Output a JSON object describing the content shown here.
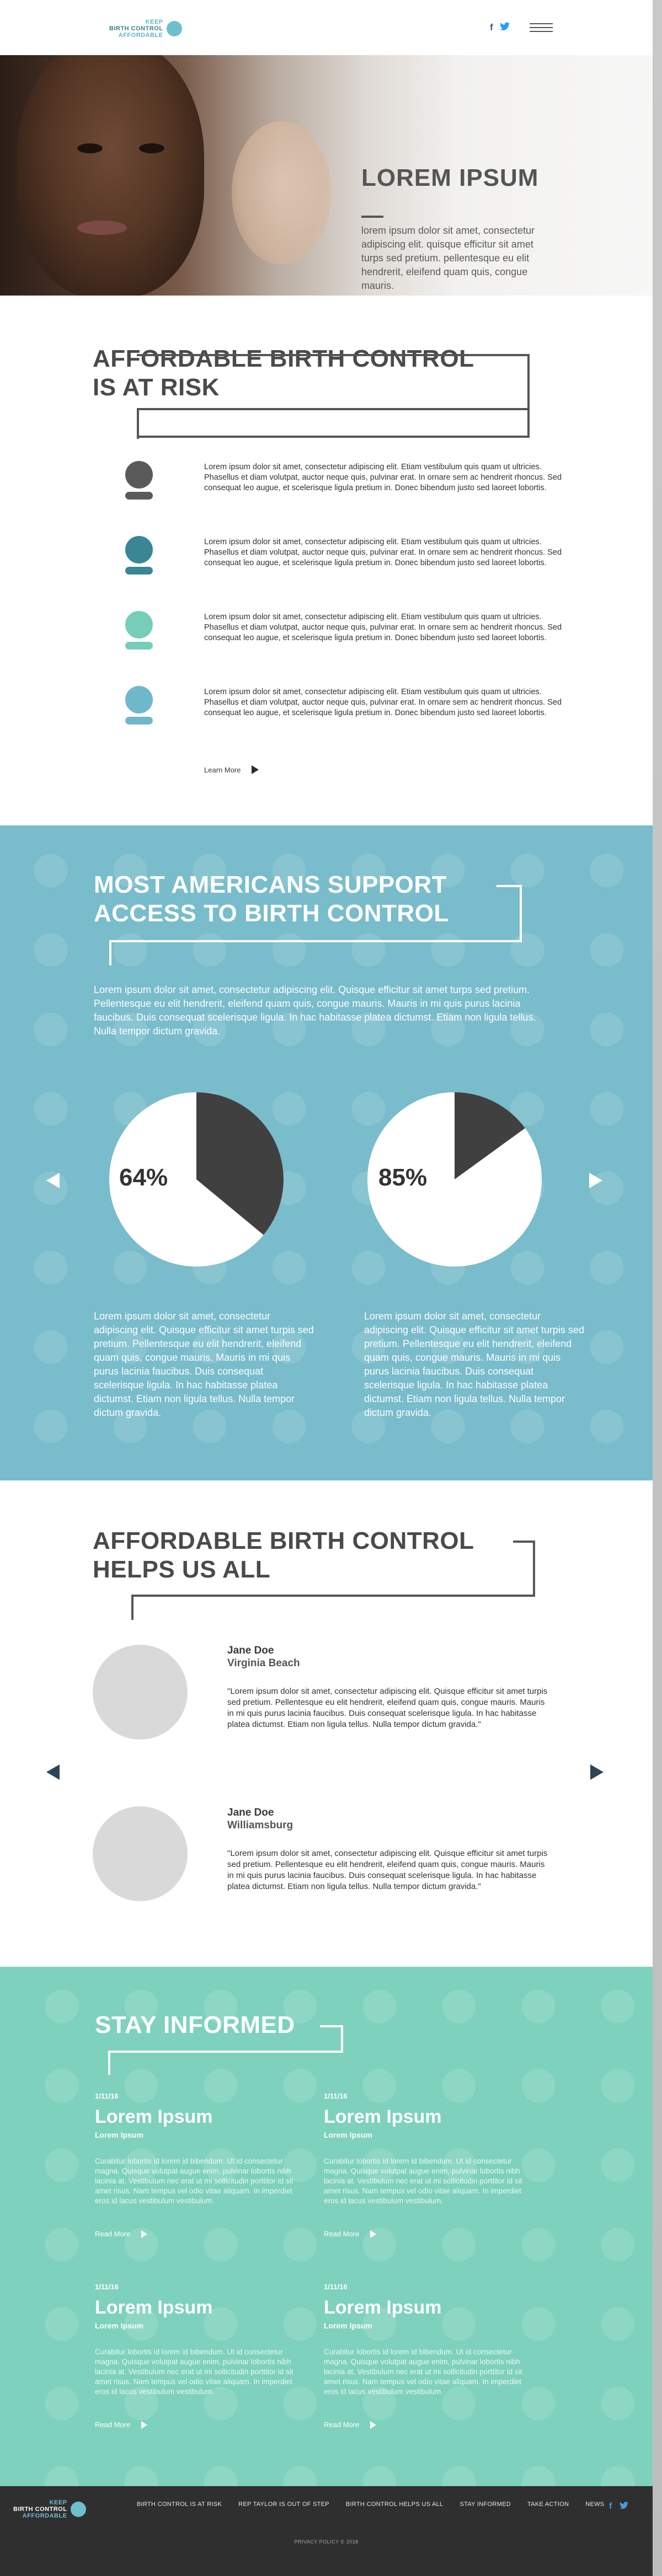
{
  "brand": {
    "line1": "KEEP",
    "line2": "BIRTH CONTROL",
    "line3": "AFFORDABLE"
  },
  "header": {
    "facebook_icon": "f",
    "twitter_icon": "t",
    "menu_icon": "hamburger-menu"
  },
  "hero": {
    "title": "LOREM IPSUM",
    "text": "lorem ipsum dolor sit amet, consectetur adipiscing elit. quisque efficitur sit amet turps sed pretium. pellentesque eu elit hendrerit, eleifend quam quis, congue mauris."
  },
  "risk": {
    "title_line1": "AFFORDABLE BIRTH CONTROL",
    "title_line2": "IS AT RISK",
    "items": [
      {
        "color": "#5a5a5a",
        "text": "Lorem ipsum dolor sit amet, consectetur adipiscing elit. Etiam vestibulum quis quam ut ultricies. Phasellus et diam volutpat, auctor neque quis, pulvinar erat. In ornare sem ac hendrerit rhoncus. Sed consequat leo augue, et scelerisque ligula pretium in. Donec bibendum justo sed laoreet lobortis."
      },
      {
        "color": "#3a8694",
        "text": "Lorem ipsum dolor sit amet, consectetur adipiscing elit. Etiam vestibulum quis quam ut ultricies. Phasellus et diam volutpat, auctor neque quis, pulvinar erat. In ornare sem ac hendrerit rhoncus. Sed consequat leo augue, et scelerisque ligula pretium in. Donec bibendum justo sed laoreet lobortis."
      },
      {
        "color": "#76cdb9",
        "text": "Lorem ipsum dolor sit amet, consectetur adipiscing elit. Etiam vestibulum quis quam ut ultricies. Phasellus et diam volutpat, auctor neque quis, pulvinar erat. In ornare sem ac hendrerit rhoncus. Sed consequat leo augue, et scelerisque ligula pretium in. Donec bibendum justo sed laoreet lobortis."
      },
      {
        "color": "#6fb8cb",
        "text": "Lorem ipsum dolor sit amet, consectetur adipiscing elit. Etiam vestibulum quis quam ut ultricies. Phasellus et diam volutpat, auctor neque quis, pulvinar erat. In ornare sem ac hendrerit rhoncus. Sed consequat leo augue, et scelerisque ligula pretium in. Donec bibendum justo sed laoreet lobortis."
      }
    ],
    "learn_more": "Learn More"
  },
  "support": {
    "title_line1": "MOST AMERICANS SUPPORT",
    "title_line2": "ACCESS TO BIRTH CONTROL",
    "intro": "Lorem ipsum dolor sit amet, consectetur adipiscing elit. Quisque efficitur sit amet turps sed pretium. Pellentesque eu elit hendrerit, eleifend quam quis, congue mauris. Mauris in mi quis purus lacinia faucibus. Duis consequat scelerisque ligula. In hac habitasse platea dictumst. Etiam non ligula tellus. Nulla tempor dictum gravida.",
    "stats": [
      {
        "label": "64%",
        "value": 64,
        "text": "Lorem ipsum dolor sit amet, consectetur adipiscing elit. Quisque efficitur sit amet turpis sed pretium. Pellentesque eu elit hendrerit, eleifend quam quis, congue mauris. Mauris in mi quis purus lacinia faucibus. Duis consequat scelerisque ligula. In hac habitasse platea dictumst. Etiam non ligula tellus. Nulla tempor dictum gravida."
      },
      {
        "label": "85%",
        "value": 85,
        "text": "Lorem ipsum dolor sit amet, consectetur adipiscing elit. Quisque efficitur sit amet turpis sed pretium. Pellentesque eu elit hendrerit, eleifend quam quis, congue mauris. Mauris in mi quis purus lacinia faucibus. Duis consequat scelerisque ligula. In hac habitasse platea dictumst. Etiam non ligula tellus. Nulla tempor dictum gravida."
      }
    ],
    "pie_colors": {
      "filled": "#404040",
      "empty": "#ffffff"
    }
  },
  "helps": {
    "title_line1": "AFFORDABLE BIRTH CONTROL",
    "title_line2": "HELPS US ALL",
    "testimonials": [
      {
        "name": "Jane Doe",
        "location": "Virginia Beach",
        "quote": "\"Lorem ipsum dolor sit amet, consectetur adipiscing elit. Quisque efficitur sit amet turpis sed pretium. Pellentesque eu elit hendrerit, eleifend quam quis, congue mauris. Mauris in mi quis purus lacinia faucibus. Duis consequat scelerisque ligula. In hac habitasse platea dictumst. Etiam non ligula tellus. Nulla tempor dictum gravida.\""
      },
      {
        "name": "Jane Doe",
        "location": "Williamsburg",
        "quote": "\"Lorem ipsum dolor sit amet, consectetur adipiscing elit. Quisque efficitur sit amet turpis sed pretium. Pellentesque eu elit hendrerit, eleifend quam quis, congue mauris. Mauris in mi quis purus lacinia faucibus. Duis consequat scelerisque ligula. In hac habitasse platea dictumst. Etiam non ligula tellus. Nulla tempor dictum gravida.\""
      }
    ]
  },
  "informed": {
    "title": "STAY INFORMED",
    "posts": [
      {
        "date": "1/11/16",
        "title": "Lorem Ipsum",
        "subtitle": "Lorem Ipsum",
        "body": "Curabitur lobortis id lorem id bibendum. Ut id consectetur magna. Quisque volutpat augue enim, pulvinar lobortis nibh lacinia at. Vestibulum nec erat ut mi sollicitudin porttitor id sit amet risus. Nam tempus vel odio vitae aliquam. In imperdiet eros id lacus vestibulum vestibulum.",
        "read_more": "Read More"
      },
      {
        "date": "1/11/16",
        "title": "Lorem Ipsum",
        "subtitle": "Lorem Ipsum",
        "body": "Curabitur lobortis id lorem id bibendum. Ut id consectetur magna. Quisque volutpat augue enim, pulvinar lobortis nibh lacinia at. Vestibulum nec erat ut mi sollicitudin porttitor id sit amet risus. Nam tempus vel odio vitae aliquam. In imperdiet eros id lacus vestibulum vestibulum.",
        "read_more": "Read More"
      },
      {
        "date": "1/11/16",
        "title": "Lorem Ipsum",
        "subtitle": "Lorem Ipsum",
        "body": "Curabitur lobortis id lorem id bibendum. Ut id consectetur magna. Quisque volutpat augue enim, pulvinar lobortis nibh lacinia at. Vestibulum nec erat ut mi sollicitudin porttitor id sit amet risus. Nam tempus vel odio vitae aliquam. In imperdiet eros id lacus vestibulum vestibulum.",
        "read_more": "Read More"
      },
      {
        "date": "1/11/16",
        "title": "Lorem Ipsum",
        "subtitle": "Lorem Ipsum",
        "body": "Curabitur lobortis id lorem id bibendum. Ut id consectetur magna. Quisque volutpat augue enim, pulvinar lobortis nibh lacinia at. Vestibulum nec erat ut mi sollicitudin porttitor id sit amet risus. Nam tempus vel odio vitae aliquam. In imperdiet eros id lacus vestibulum vestibulum.",
        "read_more": "Read More"
      }
    ]
  },
  "footer": {
    "nav": [
      "BIRTH CONTROL IS AT RISK",
      "REP TAYLOR IS OUT OF STEP",
      "BIRTH CONTROL HELPS US ALL",
      "STAY INFORMED",
      "TAKE ACTION",
      "NEWS"
    ],
    "copyright": "PRIVACY POLICY  © 2018",
    "facebook_icon": "f",
    "twitter_icon": "t"
  },
  "colors": {
    "teal": "#79bccb",
    "mint": "#7ed1bd",
    "dark": "#2f2f2f",
    "heading": "#4a4a4a"
  }
}
